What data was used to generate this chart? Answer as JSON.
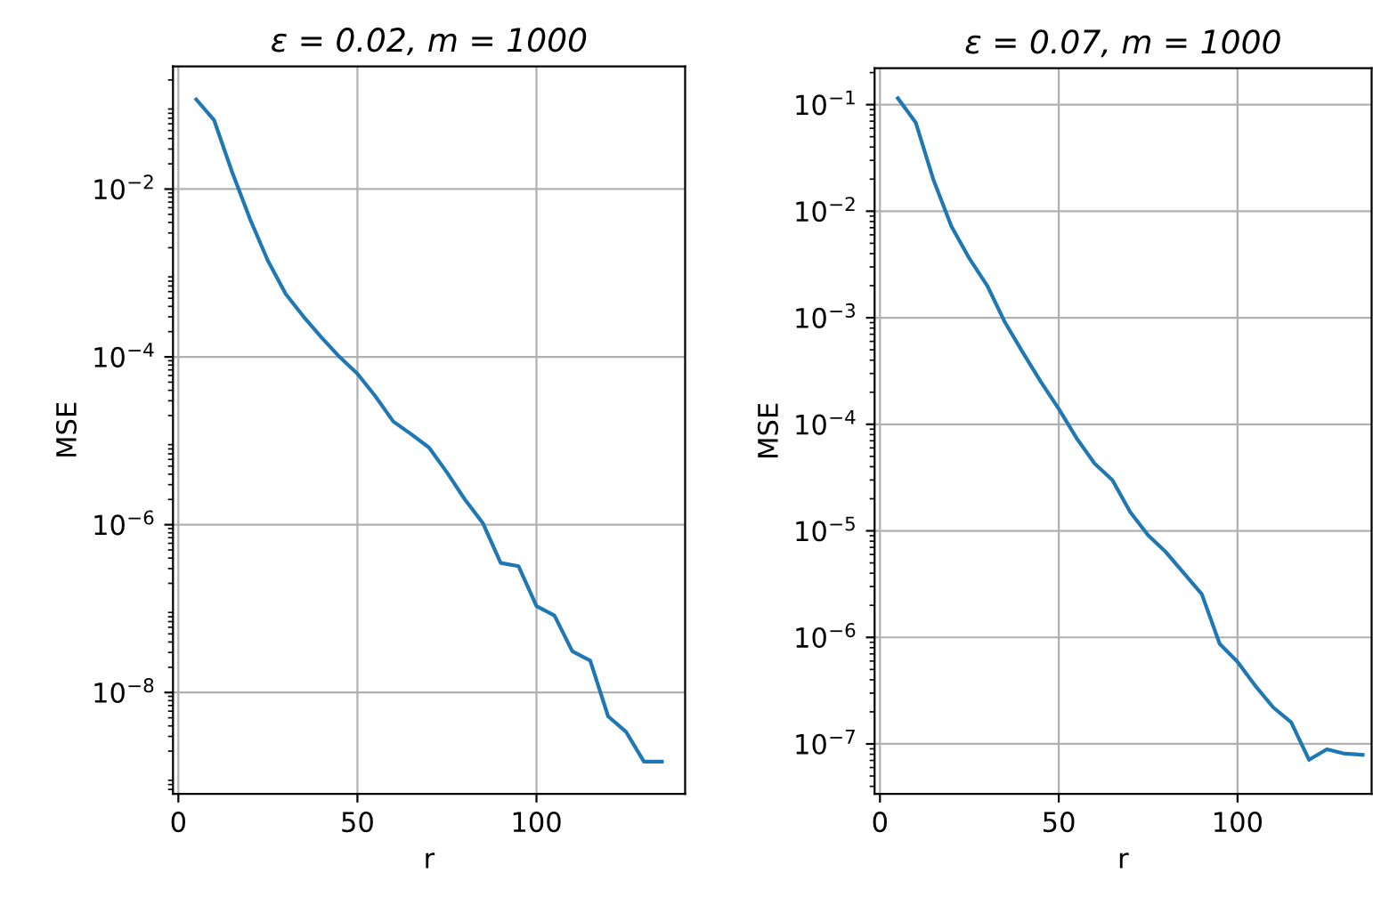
{
  "chart_data": [
    {
      "type": "line",
      "title": "ε = 0.02, m = 1000",
      "xlabel": "r",
      "ylabel": "MSE",
      "log": "y",
      "grid": true,
      "x": [
        5,
        10,
        15,
        20,
        25,
        30,
        35,
        40,
        45,
        50,
        55,
        60,
        65,
        70,
        75,
        80,
        85,
        90,
        95,
        100,
        105,
        110,
        115,
        120,
        125,
        130,
        135
      ],
      "series": [
        {
          "color": "#1f77b4",
          "values": [
            0.117,
            0.066,
            0.016,
            0.0044,
            0.0014,
            0.00056,
            0.0003,
            0.00017,
            0.0001,
            6.3e-05,
            3.4e-05,
            1.7e-05,
            1.2e-05,
            8.3e-06,
            4.2e-06,
            2e-06,
            1.05e-06,
            3.5e-07,
            3.2e-07,
            1.07e-07,
            8.3e-08,
            3.1e-08,
            2.4e-08,
            5.2e-09,
            3.4e-09,
            1.5e-09,
            1.5e-09
          ]
        }
      ],
      "xlim": [
        -1.5,
        141.5
      ],
      "xticks": [
        0,
        50,
        100
      ],
      "ylim": [
        6.2e-10,
        0.29
      ],
      "yticks": [
        {
          "value": 0.01,
          "label": "10$^{−2}$"
        },
        {
          "value": 0.0001,
          "label": "10$^{−4}$"
        },
        {
          "value": 1e-06,
          "label": "10$^{−6}$"
        },
        {
          "value": 1e-08,
          "label": "10$^{−8}$"
        }
      ]
    },
    {
      "type": "line",
      "title": "ε = 0.07, m = 1000",
      "xlabel": "r",
      "ylabel": "MSE",
      "log": "y",
      "grid": true,
      "x": [
        5,
        10,
        15,
        20,
        25,
        30,
        35,
        40,
        45,
        50,
        55,
        60,
        65,
        70,
        75,
        80,
        85,
        90,
        95,
        100,
        105,
        110,
        115,
        120,
        125,
        130,
        135
      ],
      "series": [
        {
          "color": "#1f77b4",
          "values": [
            0.115,
            0.068,
            0.0195,
            0.0072,
            0.0036,
            0.002,
            0.0009,
            0.00047,
            0.00025,
            0.00014,
            7.4e-05,
            4.3e-05,
            3e-05,
            1.5e-05,
            9.1e-06,
            6.3e-06,
            4e-06,
            2.55e-06,
            8.7e-07,
            5.9e-07,
            3.5e-07,
            2.2e-07,
            1.6e-07,
            7.1e-08,
            8.9e-08,
            8.1e-08,
            7.9e-08
          ]
        }
      ],
      "xlim": [
        -1.5,
        137.5
      ],
      "xticks": [
        0,
        50,
        100
      ],
      "ylim": [
        3.4e-08,
        0.22
      ],
      "yticks": [
        {
          "value": 0.1,
          "label": "10$^{−1}$"
        },
        {
          "value": 0.01,
          "label": "10$^{−2}$"
        },
        {
          "value": 0.001,
          "label": "10$^{−3}$"
        },
        {
          "value": 0.0001,
          "label": "10$^{−4}$"
        },
        {
          "value": 1e-05,
          "label": "10$^{−5}$"
        },
        {
          "value": 1e-06,
          "label": "10$^{−6}$"
        },
        {
          "value": 1e-07,
          "label": "10$^{−7}$"
        }
      ]
    }
  ]
}
